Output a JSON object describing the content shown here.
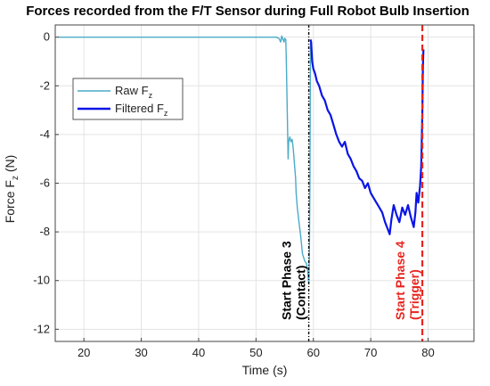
{
  "chart_data": {
    "type": "line",
    "title": "Forces recorded from the F/T Sensor during Full Robot Bulb Insertion",
    "xlabel": "Time (s)",
    "ylabel": {
      "main": "Force F",
      "sub": "z",
      "unit": " (N)"
    },
    "xlim": [
      15,
      88
    ],
    "ylim": [
      -12.5,
      0.5
    ],
    "xticks": [
      20,
      30,
      40,
      50,
      60,
      70,
      80
    ],
    "yticks": [
      0,
      -2,
      -4,
      -6,
      -8,
      -10,
      -12
    ],
    "grid": true,
    "legend": {
      "placement": "top-left",
      "entries": [
        {
          "main": "Raw F",
          "sub": "z",
          "color": "#4aabc8"
        },
        {
          "main": "Filtered F",
          "sub": "z",
          "color": "#0a14e6"
        }
      ]
    },
    "series": [
      {
        "color": "#4aabc8",
        "points": [
          [
            15.5,
            0
          ],
          [
            53.5,
            0
          ],
          [
            54.0,
            -0.05
          ],
          [
            54.3,
            -0.2
          ],
          [
            54.5,
            0.05
          ],
          [
            54.7,
            -0.1
          ],
          [
            54.9,
            -0.2
          ],
          [
            55.0,
            -0.05
          ],
          [
            55.2,
            -0.1
          ],
          [
            55.3,
            -1.2
          ],
          [
            55.5,
            -3.8
          ],
          [
            55.6,
            -5.0
          ],
          [
            55.7,
            -4.3
          ],
          [
            55.9,
            -4.1
          ],
          [
            56.1,
            -4.3
          ],
          [
            56.3,
            -4.2
          ],
          [
            56.5,
            -4.6
          ],
          [
            56.7,
            -5.2
          ],
          [
            56.9,
            -5.8
          ],
          [
            57.0,
            -6.4
          ],
          [
            57.2,
            -7.0
          ],
          [
            57.5,
            -7.6
          ],
          [
            57.8,
            -8.2
          ],
          [
            58.1,
            -8.9
          ],
          [
            58.5,
            -9.2
          ],
          [
            58.8,
            -9.3
          ],
          [
            59.0,
            -9.6
          ],
          [
            59.2,
            -10.1
          ],
          [
            59.3,
            -9.0
          ],
          [
            59.4,
            -6.0
          ],
          [
            59.5,
            -0.3
          ],
          [
            59.6,
            -0.1
          ]
        ]
      },
      {
        "color": "#0a14e6",
        "points": [
          [
            59.5,
            -0.1
          ],
          [
            59.6,
            -0.2
          ],
          [
            59.8,
            -1.0
          ],
          [
            60.0,
            -1.3
          ],
          [
            60.3,
            -1.5
          ],
          [
            60.6,
            -1.8
          ],
          [
            61.0,
            -2.0
          ],
          [
            61.5,
            -2.4
          ],
          [
            62.0,
            -2.6
          ],
          [
            62.5,
            -3.0
          ],
          [
            63.0,
            -3.2
          ],
          [
            63.5,
            -3.6
          ],
          [
            64.0,
            -4.0
          ],
          [
            64.5,
            -4.3
          ],
          [
            65.0,
            -4.5
          ],
          [
            65.5,
            -4.3
          ],
          [
            66.0,
            -4.8
          ],
          [
            66.5,
            -5.0
          ],
          [
            67.0,
            -5.3
          ],
          [
            67.5,
            -5.5
          ],
          [
            68.0,
            -5.8
          ],
          [
            68.5,
            -5.9
          ],
          [
            69.0,
            -6.2
          ],
          [
            69.5,
            -6.0
          ],
          [
            70.0,
            -6.4
          ],
          [
            70.5,
            -6.6
          ],
          [
            71.0,
            -6.8
          ],
          [
            71.5,
            -7.0
          ],
          [
            72.0,
            -7.2
          ],
          [
            72.5,
            -7.6
          ],
          [
            73.0,
            -7.9
          ],
          [
            73.3,
            -8.1
          ],
          [
            73.6,
            -7.5
          ],
          [
            74.0,
            -6.9
          ],
          [
            74.5,
            -7.3
          ],
          [
            75.0,
            -7.6
          ],
          [
            75.5,
            -7.0
          ],
          [
            76.0,
            -7.3
          ],
          [
            76.5,
            -6.9
          ],
          [
            77.0,
            -7.4
          ],
          [
            77.5,
            -7.8
          ],
          [
            77.8,
            -7.2
          ],
          [
            78.0,
            -6.4
          ],
          [
            78.3,
            -6.8
          ],
          [
            78.6,
            -6.1
          ],
          [
            78.8,
            -5.3
          ],
          [
            79.0,
            -3.0
          ],
          [
            79.1,
            -1.2
          ],
          [
            79.2,
            -0.5
          ]
        ]
      }
    ],
    "annotations": [
      {
        "x": 59.2,
        "color": "#000000",
        "line1": "Start Phase 3",
        "line2": "(Contact)"
      },
      {
        "x": 79.0,
        "color": "#e8241e",
        "line1": "Start Phase 4",
        "line2": "(Trigger)"
      }
    ]
  }
}
